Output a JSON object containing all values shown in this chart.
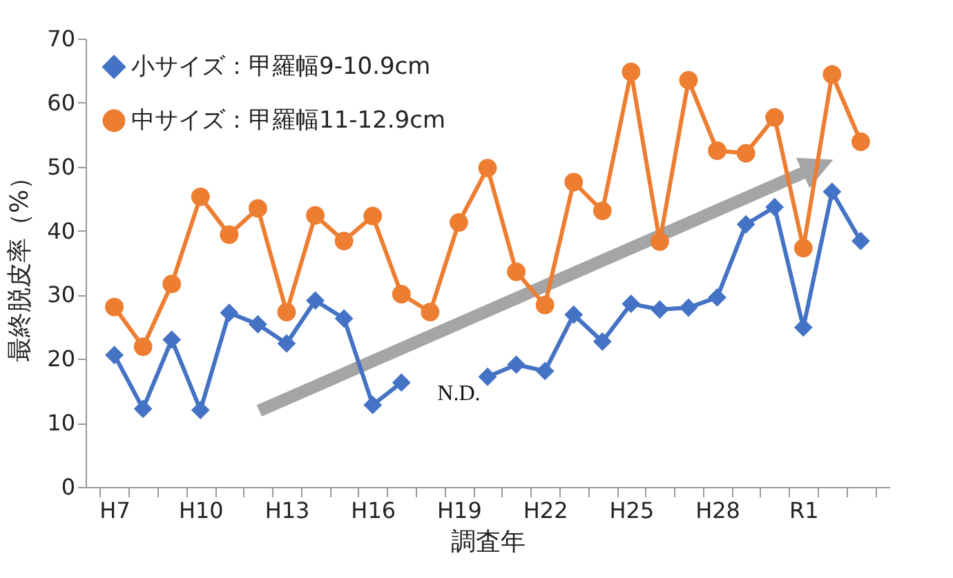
{
  "chart_data": {
    "type": "line",
    "xlabel": "調査年",
    "ylabel": "最終脱皮率（%）",
    "categories": [
      "H7",
      null,
      null,
      "H10",
      null,
      null,
      "H13",
      null,
      null,
      "H16",
      null,
      null,
      "H19",
      null,
      null,
      "H22",
      null,
      null,
      "H25",
      null,
      null,
      "H28",
      null,
      null,
      "R1",
      null,
      null
    ],
    "series": [
      {
        "name": "小サイズ：甲羅幅9-10.9cm",
        "color": "#4472c4",
        "marker": "diamond",
        "values": [
          20.6,
          12.2,
          23.0,
          12.0,
          27.2,
          25.4,
          22.4,
          29.1,
          26.3,
          12.8,
          16.3,
          null,
          null,
          17.2,
          19.1,
          18.1,
          26.9,
          22.7,
          28.6,
          27.7,
          28.0,
          29.6,
          41.0,
          43.7,
          24.9,
          46.1,
          38.4
        ]
      },
      {
        "name": "中サイズ：甲羅幅11-12.9cm",
        "color": "#ed7d31",
        "marker": "circle",
        "values": [
          28.1,
          21.9,
          31.7,
          45.3,
          39.4,
          43.5,
          27.3,
          42.4,
          38.4,
          42.3,
          30.1,
          27.3,
          41.3,
          49.8,
          33.6,
          28.4,
          47.6,
          43.1,
          64.8,
          38.3,
          63.5,
          52.5,
          52.1,
          57.7,
          37.3,
          64.4,
          53.9
        ]
      }
    ],
    "ylim": [
      0,
      70
    ],
    "yticks": [
      0,
      10,
      20,
      30,
      40,
      50,
      60,
      70
    ],
    "grid": false,
    "legend": "top left",
    "annotations": [
      "N.D."
    ]
  }
}
